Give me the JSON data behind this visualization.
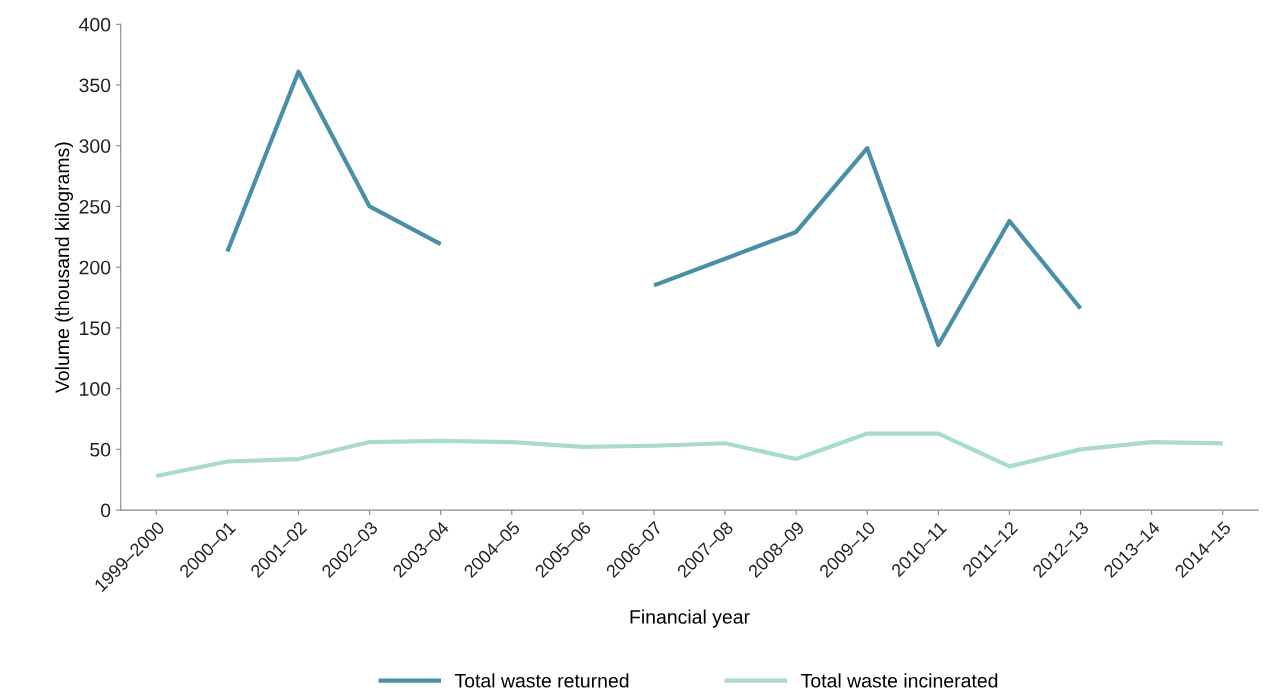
{
  "chart_data": {
    "type": "line",
    "xlabel": "Financial year",
    "ylabel": "Volume (thousand kilograms)",
    "categories": [
      "1999–2000",
      "2000–01",
      "2001–02",
      "2002–03",
      "2003–04",
      "2004–05",
      "2005–06",
      "2006–07",
      "2007–08",
      "2008–09",
      "2009–10",
      "2010–11",
      "2011–12",
      "2012–13",
      "2013–14",
      "2014–15"
    ],
    "series": [
      {
        "name": "Total waste returned",
        "color": "#4a8fa8",
        "values": [
          null,
          213,
          361,
          250,
          219,
          null,
          null,
          185,
          207,
          229,
          298,
          136,
          238,
          166,
          null,
          null
        ]
      },
      {
        "name": "Total waste incinerated",
        "color": "#a8dcc6",
        "values": [
          28,
          40,
          42,
          56,
          57,
          56,
          52,
          53,
          55,
          42,
          63,
          63,
          36,
          50,
          56,
          55
        ]
      }
    ],
    "ylim": [
      0,
      400
    ],
    "yticks": [
      0,
      50,
      100,
      150,
      200,
      250,
      300,
      350,
      400
    ],
    "grid": false,
    "legend": "bottom",
    "marker": "none",
    "line_style": "solid"
  }
}
